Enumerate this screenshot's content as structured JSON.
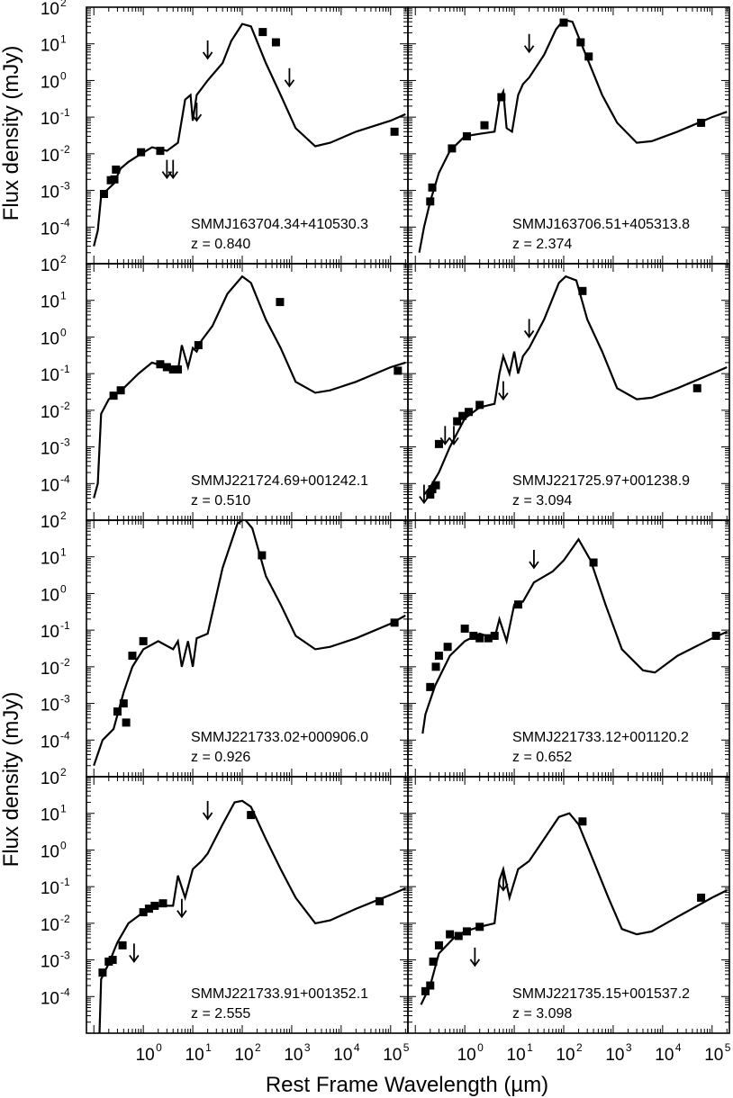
{
  "figure": {
    "ylabel": "Flux density (mJy)",
    "xlabel": "Rest Frame Wavelength (µm)"
  },
  "axes": {
    "x_ticks": [
      {
        "exp": "0",
        "label": "10"
      },
      {
        "exp": "1",
        "label": "10"
      },
      {
        "exp": "2",
        "label": "10"
      },
      {
        "exp": "3",
        "label": "10"
      },
      {
        "exp": "4",
        "label": "10"
      },
      {
        "exp": "5",
        "label": "10"
      }
    ],
    "y_ticks": [
      {
        "exp": "2",
        "label": "10"
      },
      {
        "exp": "1",
        "label": "10"
      },
      {
        "exp": "0",
        "label": "10"
      },
      {
        "exp": "-1",
        "label": "10"
      },
      {
        "exp": "-2",
        "label": "10"
      },
      {
        "exp": "-3",
        "label": "10"
      },
      {
        "exp": "-4",
        "label": "10"
      }
    ]
  },
  "chart_data": [
    {
      "type": "scatter",
      "name": "SMMJ163704.34+410530.3",
      "redshift": "z = 0.840",
      "xscale": "log",
      "yscale": "log",
      "detections": [
        [
          0.16,
          0.0008
        ],
        [
          0.22,
          0.0019
        ],
        [
          0.26,
          0.002
        ],
        [
          0.28,
          0.0037
        ],
        [
          0.9,
          0.011
        ],
        [
          2.2,
          0.012
        ],
        [
          260,
          21
        ],
        [
          480,
          11
        ],
        [
          120000,
          0.04
        ]
      ],
      "upper_limits": [
        [
          3,
          0.0022
        ],
        [
          4,
          0.0022
        ],
        [
          12,
          0.08
        ],
        [
          20,
          4
        ],
        [
          900,
          0.7
        ]
      ],
      "model": [
        [
          0.1,
          3e-05
        ],
        [
          0.12,
          8e-05
        ],
        [
          0.14,
          0.0007
        ],
        [
          0.18,
          0.001
        ],
        [
          0.25,
          0.0015
        ],
        [
          0.35,
          0.004
        ],
        [
          0.5,
          0.006
        ],
        [
          0.8,
          0.009
        ],
        [
          1.5,
          0.015
        ],
        [
          3,
          0.012
        ],
        [
          5,
          0.02
        ],
        [
          7,
          0.3
        ],
        [
          9,
          0.4
        ],
        [
          10,
          0.08
        ],
        [
          12,
          0.4
        ],
        [
          15,
          0.6
        ],
        [
          20,
          1.0
        ],
        [
          40,
          3
        ],
        [
          60,
          12
        ],
        [
          100,
          35
        ],
        [
          150,
          30
        ],
        [
          300,
          3
        ],
        [
          600,
          0.4
        ],
        [
          1200,
          0.05
        ],
        [
          3000,
          0.016
        ],
        [
          6000,
          0.02
        ],
        [
          20000,
          0.04
        ],
        [
          100000,
          0.08
        ],
        [
          200000,
          0.12
        ]
      ]
    },
    {
      "type": "scatter",
      "name": "SMMJ163706.51+405313.8",
      "redshift": "z = 2.374",
      "xscale": "log",
      "yscale": "log",
      "detections": [
        [
          0.2,
          0.0005
        ],
        [
          0.22,
          0.0012
        ],
        [
          0.55,
          0.014
        ],
        [
          1.1,
          0.03
        ],
        [
          2.5,
          0.06
        ],
        [
          5.5,
          0.35
        ],
        [
          100,
          38
        ],
        [
          220,
          11
        ],
        [
          320,
          4.5
        ],
        [
          60000,
          0.07
        ]
      ],
      "upper_limits": [
        [
          20,
          6
        ]
      ],
      "model": [
        [
          0.12,
          2e-05
        ],
        [
          0.15,
          0.0001
        ],
        [
          0.2,
          0.0005
        ],
        [
          0.3,
          0.003
        ],
        [
          0.5,
          0.012
        ],
        [
          1,
          0.03
        ],
        [
          2,
          0.035
        ],
        [
          4,
          0.04
        ],
        [
          5,
          0.3
        ],
        [
          6,
          0.5
        ],
        [
          7,
          0.05
        ],
        [
          9,
          0.04
        ],
        [
          12,
          0.4
        ],
        [
          15,
          0.8
        ],
        [
          20,
          1.2
        ],
        [
          40,
          5
        ],
        [
          70,
          25
        ],
        [
          100,
          45
        ],
        [
          150,
          40
        ],
        [
          300,
          4
        ],
        [
          600,
          0.4
        ],
        [
          1200,
          0.07
        ],
        [
          3000,
          0.02
        ],
        [
          6000,
          0.022
        ],
        [
          20000,
          0.04
        ],
        [
          100000,
          0.1
        ],
        [
          200000,
          0.14
        ]
      ]
    },
    {
      "type": "scatter",
      "name": "SMMJ221724.69+001242.1",
      "redshift": "z = 0.510",
      "xscale": "log",
      "yscale": "log",
      "detections": [
        [
          0.25,
          0.025
        ],
        [
          0.35,
          0.035
        ],
        [
          2.2,
          0.18
        ],
        [
          3,
          0.15
        ],
        [
          4,
          0.13
        ],
        [
          4.5,
          0.13
        ],
        [
          5,
          0.13
        ],
        [
          13,
          0.6
        ],
        [
          580,
          9
        ],
        [
          140000,
          0.12
        ]
      ],
      "upper_limits": [],
      "model": [
        [
          0.1,
          4e-05
        ],
        [
          0.12,
          0.0001
        ],
        [
          0.14,
          0.008
        ],
        [
          0.2,
          0.02
        ],
        [
          0.4,
          0.04
        ],
        [
          0.8,
          0.1
        ],
        [
          1.5,
          0.2
        ],
        [
          3,
          0.15
        ],
        [
          5,
          0.12
        ],
        [
          6,
          0.6
        ],
        [
          8,
          0.15
        ],
        [
          10,
          0.5
        ],
        [
          12,
          0.4
        ],
        [
          15,
          0.8
        ],
        [
          25,
          2
        ],
        [
          50,
          15
        ],
        [
          100,
          45
        ],
        [
          150,
          30
        ],
        [
          300,
          3
        ],
        [
          600,
          0.5
        ],
        [
          1200,
          0.06
        ],
        [
          3000,
          0.03
        ],
        [
          6000,
          0.035
        ],
        [
          20000,
          0.06
        ],
        [
          100000,
          0.15
        ],
        [
          200000,
          0.2
        ]
      ]
    },
    {
      "type": "scatter",
      "name": "SMMJ221725.97+001238.9",
      "redshift": "z = 3.094",
      "xscale": "log",
      "yscale": "log",
      "detections": [
        [
          0.2,
          5e-05
        ],
        [
          0.22,
          7e-05
        ],
        [
          0.26,
          9e-05
        ],
        [
          0.3,
          0.0012
        ],
        [
          0.7,
          0.005
        ],
        [
          0.9,
          0.007
        ],
        [
          1.2,
          0.009
        ],
        [
          2,
          0.014
        ],
        [
          240,
          18
        ],
        [
          50000,
          0.04
        ]
      ],
      "upper_limits": [
        [
          0.15,
          3e-05
        ],
        [
          0.4,
          0.0012
        ],
        [
          0.6,
          0.0012
        ],
        [
          6,
          0.02
        ],
        [
          20,
          1
        ]
      ],
      "model": [
        [
          0.15,
          5e-05
        ],
        [
          0.2,
          8e-05
        ],
        [
          0.3,
          0.0002
        ],
        [
          0.5,
          0.001
        ],
        [
          1,
          0.006
        ],
        [
          2,
          0.012
        ],
        [
          4,
          0.015
        ],
        [
          5,
          0.1
        ],
        [
          6,
          0.3
        ],
        [
          8,
          0.1
        ],
        [
          10,
          0.4
        ],
        [
          12,
          0.1
        ],
        [
          15,
          0.3
        ],
        [
          20,
          0.5
        ],
        [
          40,
          3
        ],
        [
          80,
          30
        ],
        [
          110,
          45
        ],
        [
          180,
          35
        ],
        [
          300,
          3
        ],
        [
          600,
          0.4
        ],
        [
          1200,
          0.04
        ],
        [
          3000,
          0.02
        ],
        [
          6000,
          0.022
        ],
        [
          20000,
          0.04
        ],
        [
          100000,
          0.1
        ],
        [
          200000,
          0.15
        ]
      ]
    },
    {
      "type": "scatter",
      "name": "SMMJ221733.02+000906.0",
      "redshift": "z = 0.926",
      "xscale": "log",
      "yscale": "log",
      "detections": [
        [
          0.3,
          0.0006
        ],
        [
          0.4,
          0.001
        ],
        [
          0.45,
          0.0003
        ],
        [
          0.6,
          0.02
        ],
        [
          1,
          0.05
        ],
        [
          250,
          11
        ],
        [
          120000,
          0.16
        ]
      ],
      "upper_limits": [],
      "model": [
        [
          0.1,
          2e-05
        ],
        [
          0.15,
          0.0001
        ],
        [
          0.25,
          0.0002
        ],
        [
          0.4,
          0.002
        ],
        [
          0.6,
          0.01
        ],
        [
          1,
          0.03
        ],
        [
          2,
          0.05
        ],
        [
          4,
          0.03
        ],
        [
          5,
          0.05
        ],
        [
          6,
          0.01
        ],
        [
          8,
          0.05
        ],
        [
          10,
          0.01
        ],
        [
          12,
          0.06
        ],
        [
          20,
          0.08
        ],
        [
          40,
          5
        ],
        [
          80,
          80
        ],
        [
          110,
          110
        ],
        [
          160,
          60
        ],
        [
          300,
          3
        ],
        [
          600,
          0.5
        ],
        [
          1200,
          0.07
        ],
        [
          3000,
          0.03
        ],
        [
          6000,
          0.035
        ],
        [
          20000,
          0.06
        ],
        [
          100000,
          0.15
        ],
        [
          200000,
          0.25
        ]
      ]
    },
    {
      "type": "scatter",
      "name": "SMMJ221733.12+001120.2",
      "redshift": "z = 0.652",
      "xscale": "log",
      "yscale": "log",
      "detections": [
        [
          0.2,
          0.0028
        ],
        [
          0.26,
          0.01
        ],
        [
          0.3,
          0.02
        ],
        [
          0.45,
          0.035
        ],
        [
          1,
          0.11
        ],
        [
          1.5,
          0.07
        ],
        [
          2,
          0.06
        ],
        [
          3,
          0.06
        ],
        [
          4,
          0.07
        ],
        [
          12,
          0.5
        ],
        [
          400,
          7
        ],
        [
          120000,
          0.07
        ]
      ],
      "upper_limits": [
        [
          25,
          5
        ]
      ],
      "model": [
        [
          0.14,
          0.00015
        ],
        [
          0.16,
          0.0005
        ],
        [
          0.25,
          0.003
        ],
        [
          0.5,
          0.02
        ],
        [
          1,
          0.05
        ],
        [
          2,
          0.08
        ],
        [
          4,
          0.06
        ],
        [
          5,
          0.2
        ],
        [
          7,
          0.05
        ],
        [
          10,
          0.5
        ],
        [
          15,
          0.6
        ],
        [
          25,
          2
        ],
        [
          60,
          4
        ],
        [
          100,
          8
        ],
        [
          200,
          30
        ],
        [
          350,
          8
        ],
        [
          700,
          0.5
        ],
        [
          1500,
          0.03
        ],
        [
          4000,
          0.008
        ],
        [
          7000,
          0.007
        ],
        [
          20000,
          0.02
        ],
        [
          100000,
          0.06
        ],
        [
          200000,
          0.09
        ]
      ]
    },
    {
      "type": "scatter",
      "name": "SMMJ221733.91+001352.1",
      "redshift": "z = 2.555",
      "xscale": "log",
      "yscale": "log",
      "detections": [
        [
          0.15,
          0.00045
        ],
        [
          0.2,
          0.0009
        ],
        [
          0.24,
          0.001
        ],
        [
          0.38,
          0.0025
        ],
        [
          1,
          0.02
        ],
        [
          1.3,
          0.025
        ],
        [
          1.7,
          0.03
        ],
        [
          2.5,
          0.035
        ],
        [
          150,
          9
        ],
        [
          60000,
          0.04
        ]
      ],
      "upper_limits": [
        [
          0.65,
          0.0009
        ],
        [
          6,
          0.015
        ],
        [
          20,
          7
        ]
      ],
      "model": [
        [
          0.13,
          1e-05
        ],
        [
          0.14,
          0.0003
        ],
        [
          0.2,
          0.0008
        ],
        [
          0.3,
          0.003
        ],
        [
          0.5,
          0.01
        ],
        [
          1,
          0.02
        ],
        [
          2,
          0.03
        ],
        [
          4,
          0.03
        ],
        [
          5,
          0.2
        ],
        [
          7,
          0.05
        ],
        [
          10,
          0.3
        ],
        [
          15,
          0.5
        ],
        [
          20,
          0.8
        ],
        [
          40,
          5
        ],
        [
          70,
          20
        ],
        [
          100,
          22
        ],
        [
          150,
          15
        ],
        [
          300,
          2
        ],
        [
          600,
          0.3
        ],
        [
          1200,
          0.05
        ],
        [
          3000,
          0.01
        ],
        [
          6000,
          0.012
        ],
        [
          20000,
          0.025
        ],
        [
          100000,
          0.06
        ],
        [
          200000,
          0.09
        ]
      ]
    },
    {
      "type": "scatter",
      "name": "SMMJ221735.15+001537.2",
      "redshift": "z = 3.098",
      "xscale": "log",
      "yscale": "log",
      "detections": [
        [
          0.16,
          0.00014
        ],
        [
          0.2,
          0.0002
        ],
        [
          0.23,
          0.0009
        ],
        [
          0.3,
          0.0025
        ],
        [
          0.5,
          0.005
        ],
        [
          0.75,
          0.0045
        ],
        [
          1.1,
          0.006
        ],
        [
          2,
          0.008
        ],
        [
          240,
          6
        ],
        [
          60000,
          0.05
        ]
      ],
      "upper_limits": [
        [
          1.6,
          0.0007
        ],
        [
          6,
          0.08
        ]
      ],
      "model": [
        [
          0.13,
          6e-05
        ],
        [
          0.2,
          0.0002
        ],
        [
          0.3,
          0.0015
        ],
        [
          0.6,
          0.004
        ],
        [
          1,
          0.006
        ],
        [
          2,
          0.008
        ],
        [
          4,
          0.01
        ],
        [
          5,
          0.15
        ],
        [
          6,
          0.3
        ],
        [
          8,
          0.05
        ],
        [
          12,
          0.3
        ],
        [
          20,
          0.5
        ],
        [
          40,
          2
        ],
        [
          80,
          8
        ],
        [
          130,
          10
        ],
        [
          200,
          5
        ],
        [
          400,
          0.5
        ],
        [
          800,
          0.05
        ],
        [
          1500,
          0.007
        ],
        [
          3000,
          0.005
        ],
        [
          6000,
          0.006
        ],
        [
          20000,
          0.015
        ],
        [
          100000,
          0.05
        ],
        [
          200000,
          0.08
        ]
      ]
    }
  ]
}
